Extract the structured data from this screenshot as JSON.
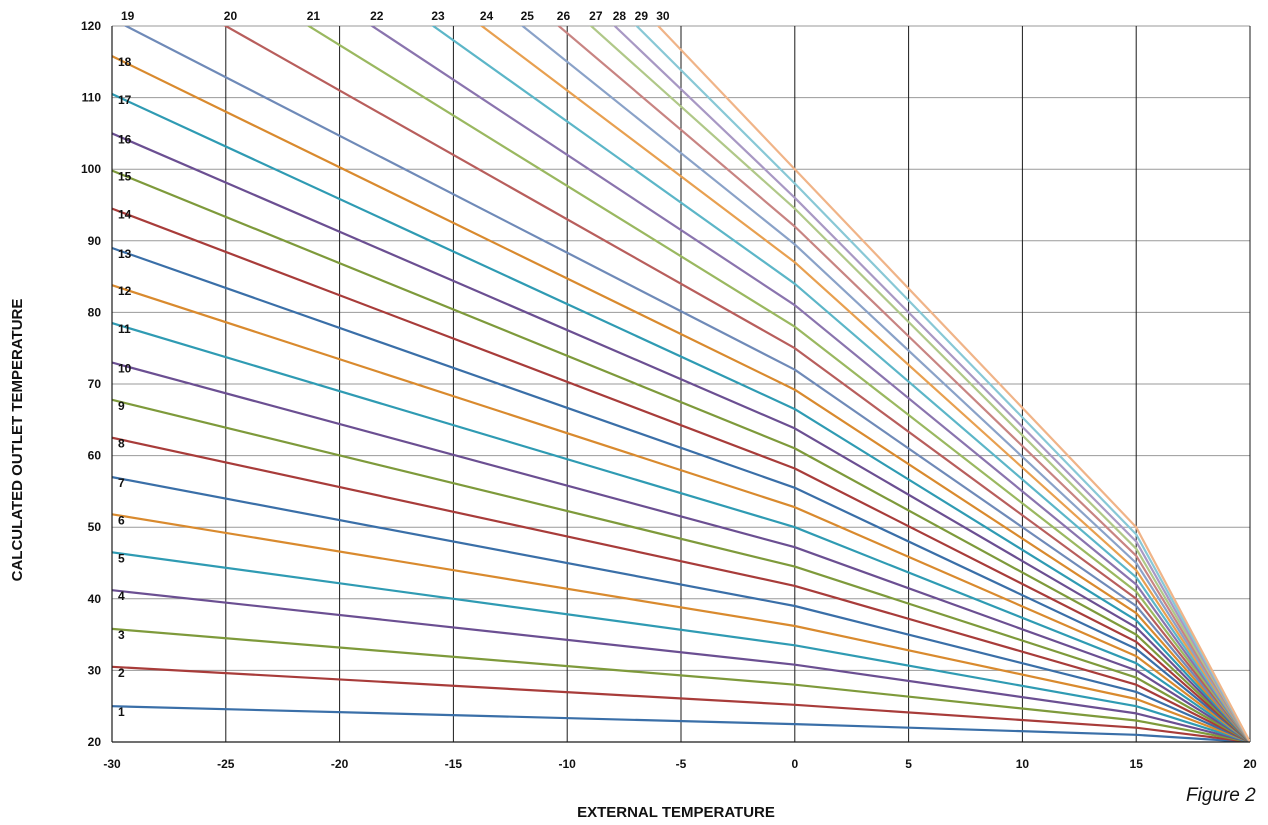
{
  "chart_data": {
    "type": "line",
    "title": "",
    "xlabel": "EXTERNAL TEMPERATURE",
    "ylabel": "CALCULATED OUTLET TEMPERATURE",
    "caption": "Figure 2",
    "xlim": [
      -30,
      20
    ],
    "ylim": [
      20,
      120
    ],
    "x_ticks": [
      -30,
      -25,
      -20,
      -15,
      -10,
      -5,
      0,
      5,
      10,
      15,
      20
    ],
    "y_ticks": [
      20,
      30,
      40,
      50,
      60,
      70,
      80,
      90,
      100,
      110,
      120
    ],
    "grid": "vertical and horizontal",
    "legend": "none",
    "series_note": "Heating curves 1-30; each curve listed as [x, y] points (external temp, outlet temp).",
    "series": [
      {
        "label": "1",
        "color": "#3a6fa8",
        "points": [
          [
            -30,
            25
          ],
          [
            0,
            22.5
          ],
          [
            15,
            21
          ],
          [
            20,
            20
          ]
        ]
      },
      {
        "label": "2",
        "color": "#a83c3a",
        "points": [
          [
            -30,
            30.5
          ],
          [
            0,
            25.2
          ],
          [
            15,
            22
          ],
          [
            20,
            20
          ]
        ]
      },
      {
        "label": "3",
        "color": "#7e9a3b",
        "points": [
          [
            -30,
            35.8
          ],
          [
            0,
            28
          ],
          [
            15,
            23
          ],
          [
            20,
            20
          ]
        ]
      },
      {
        "label": "4",
        "color": "#6b4f92",
        "points": [
          [
            -30,
            41.2
          ],
          [
            0,
            30.8
          ],
          [
            15,
            24
          ],
          [
            20,
            20
          ]
        ]
      },
      {
        "label": "5",
        "color": "#2f9bb3",
        "points": [
          [
            -30,
            46.5
          ],
          [
            0,
            33.5
          ],
          [
            15,
            25
          ],
          [
            20,
            20
          ]
        ]
      },
      {
        "label": "6",
        "color": "#d98a2e",
        "points": [
          [
            -30,
            51.8
          ],
          [
            0,
            36.2
          ],
          [
            15,
            26
          ],
          [
            20,
            20
          ]
        ]
      },
      {
        "label": "7",
        "color": "#3a6fa8",
        "points": [
          [
            -30,
            57
          ],
          [
            0,
            39
          ],
          [
            15,
            27
          ],
          [
            20,
            20
          ]
        ]
      },
      {
        "label": "8",
        "color": "#a83c3a",
        "points": [
          [
            -30,
            62.5
          ],
          [
            0,
            41.8
          ],
          [
            15,
            28
          ],
          [
            20,
            20
          ]
        ]
      },
      {
        "label": "9",
        "color": "#7e9a3b",
        "points": [
          [
            -30,
            67.8
          ],
          [
            0,
            44.5
          ],
          [
            15,
            29
          ],
          [
            20,
            20
          ]
        ]
      },
      {
        "label": "10",
        "color": "#6b4f92",
        "points": [
          [
            -30,
            73
          ],
          [
            0,
            47.2
          ],
          [
            15,
            30
          ],
          [
            20,
            20
          ]
        ]
      },
      {
        "label": "11",
        "color": "#2f9bb3",
        "points": [
          [
            -30,
            78.5
          ],
          [
            0,
            50
          ],
          [
            15,
            31
          ],
          [
            20,
            20
          ]
        ]
      },
      {
        "label": "12",
        "color": "#d98a2e",
        "points": [
          [
            -30,
            83.8
          ],
          [
            0,
            52.8
          ],
          [
            15,
            32
          ],
          [
            20,
            20
          ]
        ]
      },
      {
        "label": "13",
        "color": "#3a6fa8",
        "points": [
          [
            -30,
            89
          ],
          [
            0,
            55.5
          ],
          [
            15,
            33
          ],
          [
            20,
            20
          ]
        ]
      },
      {
        "label": "14",
        "color": "#a83c3a",
        "points": [
          [
            -30,
            94.5
          ],
          [
            0,
            58.2
          ],
          [
            15,
            34
          ],
          [
            20,
            20
          ]
        ]
      },
      {
        "label": "15",
        "color": "#7e9a3b",
        "points": [
          [
            -30,
            99.8
          ],
          [
            0,
            61
          ],
          [
            15,
            35
          ],
          [
            20,
            20
          ]
        ]
      },
      {
        "label": "16",
        "color": "#6b4f92",
        "points": [
          [
            -30,
            105
          ],
          [
            0,
            63.8
          ],
          [
            15,
            36
          ],
          [
            20,
            20
          ]
        ]
      },
      {
        "label": "17",
        "color": "#2f9bb3",
        "points": [
          [
            -30,
            110.5
          ],
          [
            0,
            66.5
          ],
          [
            15,
            37
          ],
          [
            20,
            20
          ]
        ]
      },
      {
        "label": "18",
        "color": "#d98a2e",
        "points": [
          [
            -30,
            115.8
          ],
          [
            0,
            69.2
          ],
          [
            15,
            38
          ],
          [
            20,
            20
          ]
        ]
      },
      {
        "label": "19",
        "color": "#6f8ab8",
        "points": [
          [
            -30,
            121
          ],
          [
            0,
            72
          ],
          [
            15,
            39
          ],
          [
            20,
            20
          ]
        ]
      },
      {
        "label": "20",
        "color": "#b85e5c",
        "points": [
          [
            -30,
            129
          ],
          [
            0,
            75
          ],
          [
            15,
            40
          ],
          [
            20,
            20
          ]
        ]
      },
      {
        "label": "21",
        "color": "#9ab860",
        "points": [
          [
            -30,
            137
          ],
          [
            0,
            78
          ],
          [
            15,
            41
          ],
          [
            20,
            20
          ]
        ]
      },
      {
        "label": "22",
        "color": "#8a74ae",
        "points": [
          [
            -30,
            144
          ],
          [
            0,
            81
          ],
          [
            15,
            42
          ],
          [
            20,
            20
          ]
        ]
      },
      {
        "label": "23",
        "color": "#5cb6c8",
        "points": [
          [
            -30,
            152
          ],
          [
            0,
            84
          ],
          [
            15,
            43
          ],
          [
            20,
            20
          ]
        ]
      },
      {
        "label": "24",
        "color": "#e8a050",
        "points": [
          [
            -30,
            159
          ],
          [
            0,
            87
          ],
          [
            15,
            44
          ],
          [
            20,
            20
          ]
        ]
      },
      {
        "label": "25",
        "color": "#8aa2c8",
        "points": [
          [
            -30,
            166
          ],
          [
            0,
            89.5
          ],
          [
            15,
            45
          ],
          [
            20,
            20
          ]
        ]
      },
      {
        "label": "26",
        "color": "#c88482",
        "points": [
          [
            -30,
            173
          ],
          [
            0,
            92
          ],
          [
            15,
            46
          ],
          [
            20,
            20
          ]
        ]
      },
      {
        "label": "27",
        "color": "#b0c888",
        "points": [
          [
            -30,
            180
          ],
          [
            0,
            94.5
          ],
          [
            15,
            47
          ],
          [
            20,
            20
          ]
        ]
      },
      {
        "label": "28",
        "color": "#a898c4",
        "points": [
          [
            -30,
            187
          ],
          [
            0,
            96
          ],
          [
            15,
            48
          ],
          [
            20,
            20
          ]
        ]
      },
      {
        "label": "29",
        "color": "#88c8d6",
        "points": [
          [
            -30,
            193
          ],
          [
            0,
            98
          ],
          [
            15,
            49
          ],
          [
            20,
            20
          ]
        ]
      },
      {
        "label": "30",
        "color": "#f0b488",
        "points": [
          [
            -30,
            200
          ],
          [
            0,
            100
          ],
          [
            15,
            50
          ],
          [
            20,
            20
          ]
        ]
      }
    ]
  }
}
